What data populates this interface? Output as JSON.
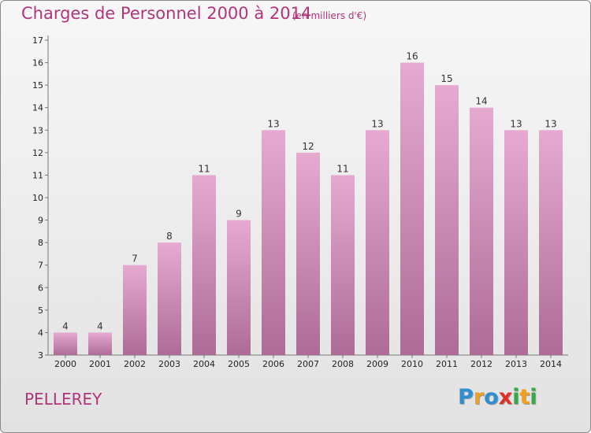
{
  "header": {
    "title": "Charges de Personnel 2000 à 2014",
    "subtitle": "(en milliers d'€)"
  },
  "commune": "PELLEREY",
  "logo": {
    "text": "Proxiti",
    "letters": [
      {
        "ch": "P",
        "color": "#2f8fd0"
      },
      {
        "ch": "r",
        "color": "#f0a020"
      },
      {
        "ch": "o",
        "color": "#2f8fd0"
      },
      {
        "ch": "x",
        "color": "#e0302a"
      },
      {
        "ch": "i",
        "color": "#3aa84a"
      },
      {
        "ch": "t",
        "color": "#f0a020"
      },
      {
        "ch": "i",
        "color": "#3aa84a"
      }
    ]
  },
  "chart_data": {
    "type": "bar",
    "title": "Charges de Personnel 2000 à 2014",
    "subtitle": "(en milliers d'€)",
    "xlabel": "",
    "ylabel": "",
    "categories": [
      "2000",
      "2001",
      "2002",
      "2003",
      "2004",
      "2005",
      "2006",
      "2007",
      "2008",
      "2009",
      "2010",
      "2011",
      "2012",
      "2013",
      "2014"
    ],
    "values": [
      4,
      4,
      7,
      8,
      11,
      9,
      13,
      12,
      11,
      13,
      16,
      15,
      14,
      13,
      13
    ],
    "ylim": [
      3,
      17
    ],
    "yticks": [
      3,
      4,
      5,
      6,
      7,
      8,
      9,
      10,
      11,
      12,
      13,
      14,
      15,
      16,
      17
    ],
    "grid": false,
    "bar_color_top": "#e6aad0",
    "bar_color_bottom": "#ad6c96",
    "axis_color": "#777777"
  }
}
